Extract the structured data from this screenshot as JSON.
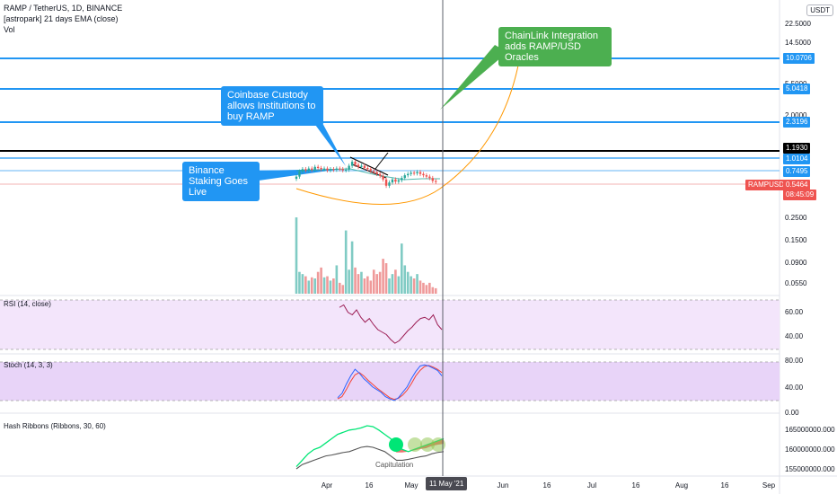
{
  "header": {
    "title": "RAMP / TetherUS, 1D, BINANCE",
    "indicator_ema": "[astropark] 21 days EMA (close)",
    "indicator_vol": "Vol"
  },
  "currency_badge": "USDT",
  "settings_icon": "gear-icon",
  "annotations": {
    "chainlink": "ChainLink Integration adds RAMP/USD Oracles",
    "coinbase": "Coinbase Custody allows Institutions to buy RAMP",
    "binance": "Binance Staking Goes Live"
  },
  "colors": {
    "up": "#26a69a",
    "down": "#ef5350",
    "callout_blue": "#2196f3",
    "callout_green": "#4caf50",
    "level_blue": "#2196f3",
    "level_black": "#000000",
    "rsi_line": "#9c1d54",
    "stoch_k": "#2962ff",
    "stoch_d": "#f44336",
    "arc": "#ff9800"
  },
  "price_axis": {
    "scale": "log",
    "ticks": [
      "22.5000",
      "14.5000",
      "5.5000",
      "2.0000",
      "0.2500",
      "0.1500",
      "0.0900",
      "0.0550"
    ],
    "levels": [
      {
        "label": "10.0706",
        "color": "blue"
      },
      {
        "label": "5.0418",
        "color": "blue"
      },
      {
        "label": "2.3196",
        "color": "blue"
      },
      {
        "label": "1.1930",
        "color": "black"
      },
      {
        "label": "1.0104",
        "color": "blue"
      },
      {
        "label": "0.7495",
        "color": "blue"
      }
    ],
    "current_price": {
      "symbol": "RAMPUSDT",
      "price": "0.5464",
      "countdown": "08:45:09"
    }
  },
  "rsi": {
    "title": "RSI (14, close)",
    "ticks": [
      "60.00",
      "40.00"
    ]
  },
  "stoch": {
    "title": "Stoch (14, 3, 3)",
    "ticks": [
      "80.00",
      "40.00",
      "0.00"
    ]
  },
  "hash": {
    "title": "Hash Ribbons (Ribbons, 30, 60)",
    "ticks": [
      "165000000.000",
      "160000000.000",
      "155000000.000"
    ],
    "label": "Capitulation"
  },
  "time_axis": {
    "labels": [
      "Apr",
      "16",
      "May",
      "Jun",
      "16",
      "Jul",
      "16",
      "Aug",
      "16",
      "Sep"
    ],
    "cursor": "11 May '21"
  },
  "chart_data": {
    "type": "candlestick",
    "title": "RAMP / TetherUS, 1D, BINANCE",
    "x_range": [
      "2021-03-22",
      "2021-09-05"
    ],
    "y_scale": "log",
    "ylim": [
      0.05,
      30
    ],
    "last_close": 0.5464,
    "price_levels": [
      10.0706,
      5.0418,
      2.3196,
      1.193,
      1.0104,
      0.7495
    ],
    "cursor_date": "2021-05-11",
    "price": {
      "closes": [
        0.62,
        0.7,
        0.74,
        0.72,
        0.75,
        0.73,
        0.78,
        0.76,
        0.74,
        0.75,
        0.72,
        0.74,
        0.73,
        0.75,
        0.74,
        0.72,
        0.73,
        0.8,
        0.88,
        0.82,
        0.78,
        0.8,
        0.76,
        0.74,
        0.71,
        0.69,
        0.66,
        0.63,
        0.58,
        0.5,
        0.54,
        0.58,
        0.55,
        0.57,
        0.6,
        0.64,
        0.66,
        0.68,
        0.67,
        0.69,
        0.66,
        0.64,
        0.62,
        0.6,
        0.56,
        0.5464
      ]
    },
    "volume": {
      "values": [
        70,
        20,
        18,
        16,
        12,
        15,
        14,
        20,
        24,
        15,
        16,
        12,
        14,
        26,
        10,
        8,
        58,
        22,
        48,
        24,
        18,
        20,
        14,
        16,
        12,
        22,
        18,
        20,
        32,
        28,
        14,
        18,
        22,
        16,
        46,
        26,
        20,
        16,
        14,
        18,
        12,
        10,
        8,
        10,
        6,
        5
      ]
    },
    "rsi": {
      "values": [
        64,
        66,
        60,
        58,
        62,
        56,
        52,
        55,
        50,
        46,
        44,
        42,
        38,
        35,
        37,
        41,
        45,
        48,
        52,
        55,
        56,
        54,
        58,
        50,
        46
      ]
    },
    "stoch": {
      "k": [
        20,
        28,
        45,
        60,
        72,
        65,
        55,
        48,
        40,
        35,
        30,
        22,
        18,
        15,
        20,
        30,
        40,
        55,
        68,
        78,
        80,
        78,
        74,
        70,
        60
      ],
      "d": [
        18,
        22,
        35,
        50,
        62,
        66,
        60,
        52,
        45,
        38,
        32,
        26,
        20,
        17,
        19,
        25,
        34,
        46,
        60,
        70,
        77,
        79,
        76,
        72,
        66
      ]
    },
    "hash_ribbons": {
      "fast": [
        155.5,
        157.0,
        158.5,
        159.5,
        160.0,
        161.0,
        162.0,
        163.0,
        163.5,
        164.0,
        164.2,
        164.5,
        165.0,
        164.8,
        164.0,
        163.0,
        162.0,
        160.5,
        159.5,
        159.0,
        159.5,
        160.0,
        160.5,
        161.0,
        161.5,
        162.0
      ],
      "slow": [
        155.0,
        156.0,
        156.5,
        157.0,
        157.5,
        158.0,
        158.2,
        158.5,
        158.8,
        159.0,
        159.5,
        160.0,
        160.2,
        160.0,
        159.5,
        159.0,
        158.0,
        157.0,
        157.0,
        157.2,
        157.5,
        157.8,
        158.0,
        158.5,
        158.8,
        159.0
      ]
    }
  }
}
